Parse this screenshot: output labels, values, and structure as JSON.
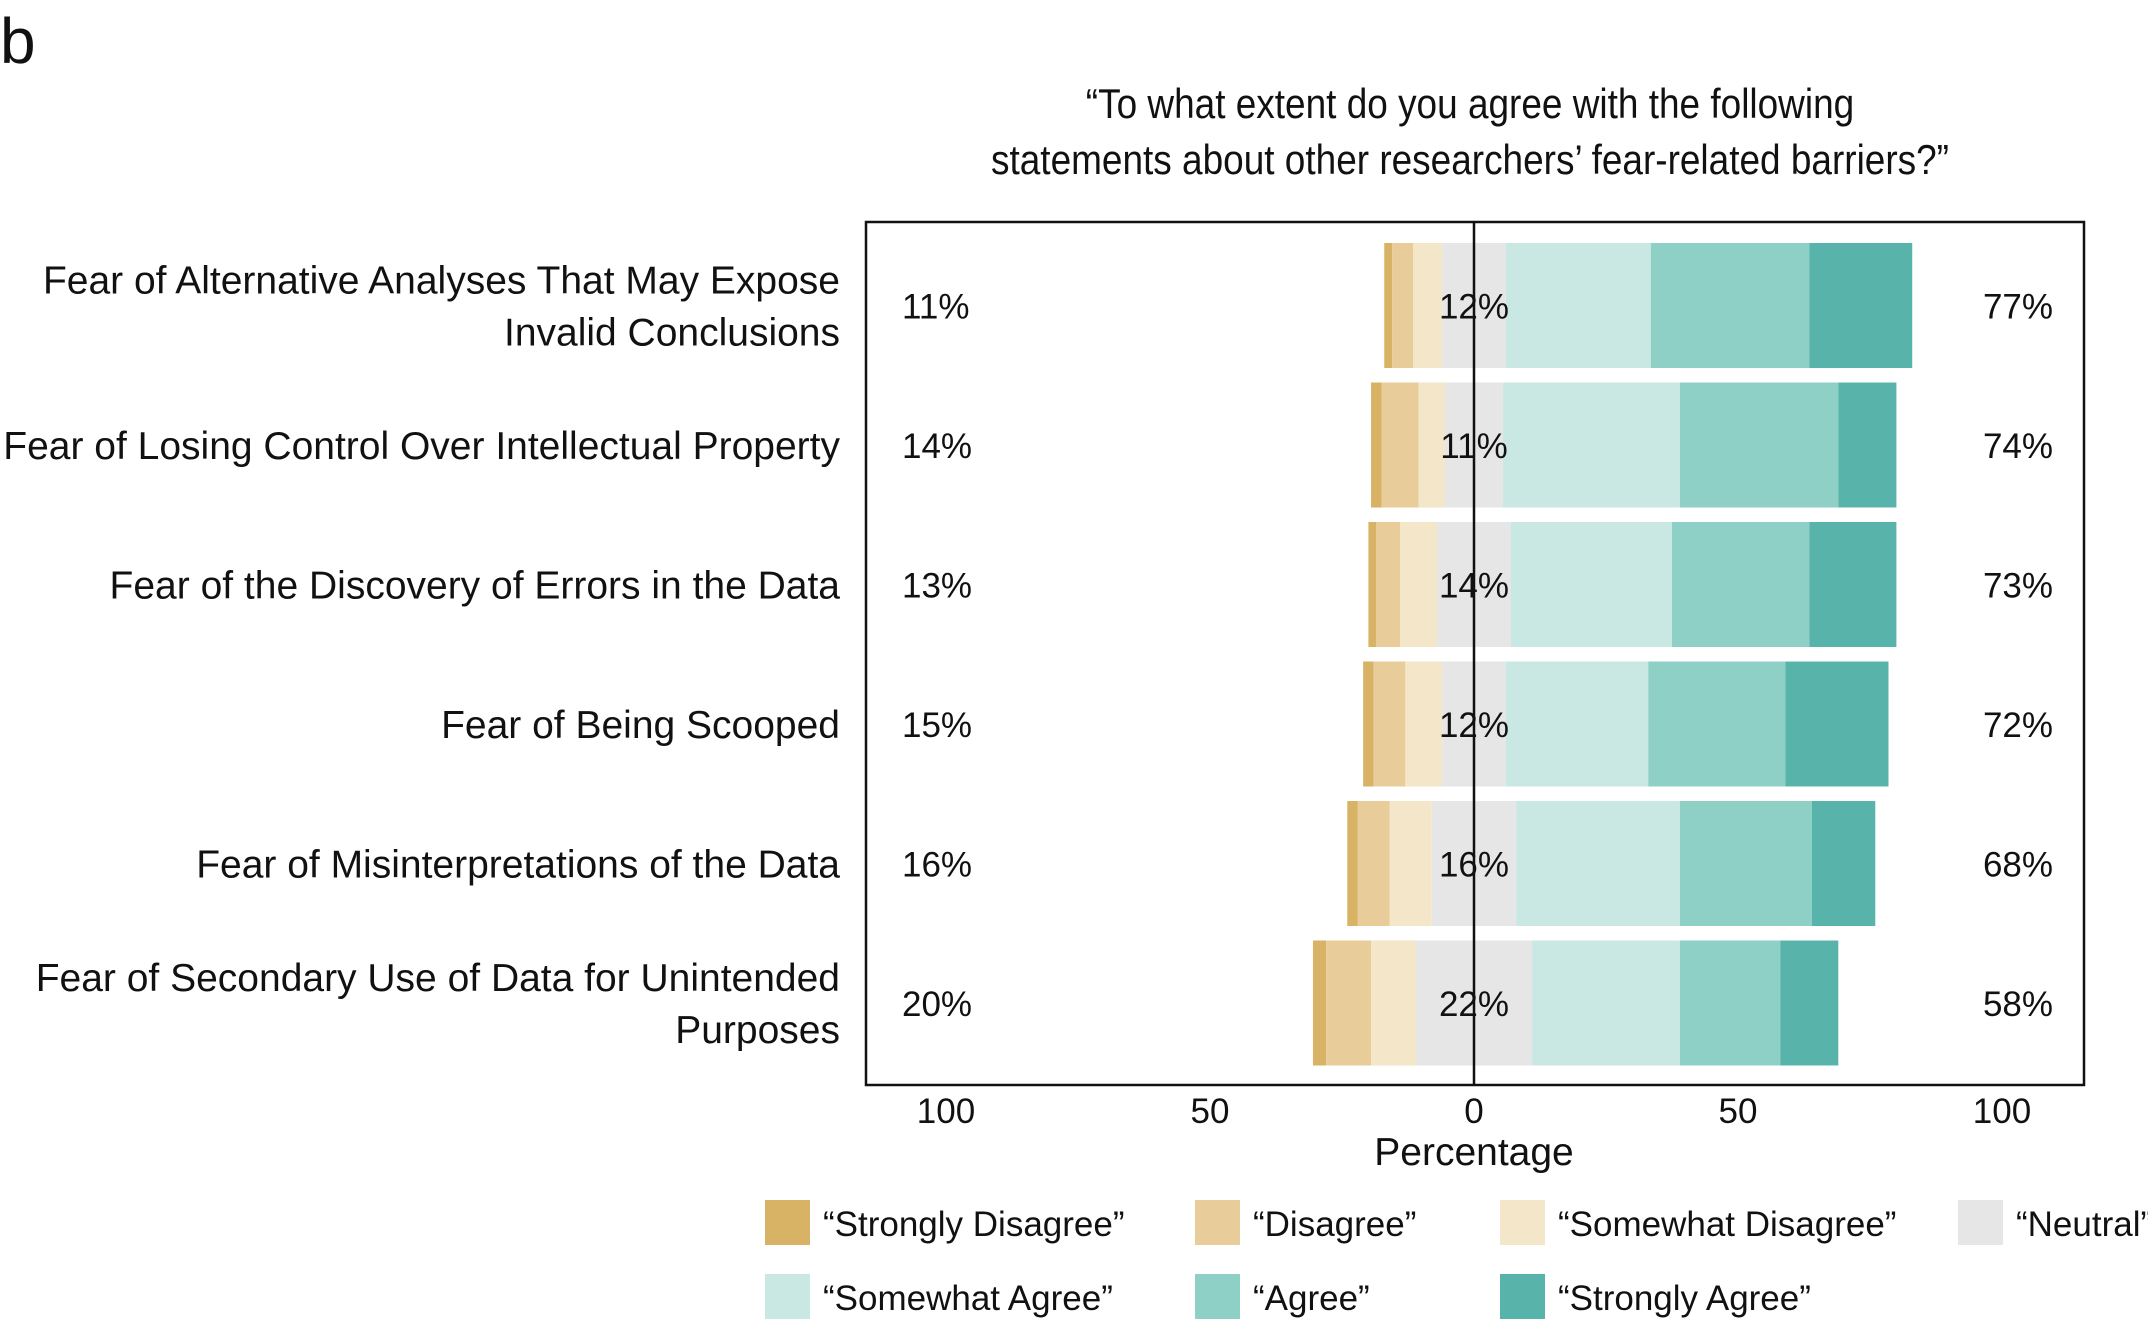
{
  "panel_label": "b",
  "chart_data": {
    "type": "bar",
    "orientation": "horizontal",
    "stacked": "diverging",
    "title_lines": [
      "“To what extent do you agree with the following",
      "statements about other researchers’ fear-related barriers?”"
    ],
    "xlabel": "Percentage",
    "xlim": [
      -100,
      100
    ],
    "xticks": [
      {
        "value": -100,
        "label": "100"
      },
      {
        "value": -50,
        "label": "50"
      },
      {
        "value": 0,
        "label": "0"
      },
      {
        "value": 50,
        "label": "50"
      },
      {
        "value": 100,
        "label": "100"
      }
    ],
    "categories": [
      {
        "lines": [
          "Fear of Alternative Analyses That May Expose",
          "Invalid Conclusions"
        ],
        "left_pct": "11%",
        "neutral_pct": "12%",
        "right_pct": "77%"
      },
      {
        "lines": [
          "Fear of Losing Control Over Intellectual Property"
        ],
        "left_pct": "14%",
        "neutral_pct": "11%",
        "right_pct": "74%"
      },
      {
        "lines": [
          "Fear of the Discovery of Errors in the Data"
        ],
        "left_pct": "13%",
        "neutral_pct": "14%",
        "right_pct": "73%"
      },
      {
        "lines": [
          "Fear of Being Scooped"
        ],
        "left_pct": "15%",
        "neutral_pct": "12%",
        "right_pct": "72%"
      },
      {
        "lines": [
          "Fear of Misinterpretations of the Data"
        ],
        "left_pct": "16%",
        "neutral_pct": "16%",
        "right_pct": "68%"
      },
      {
        "lines": [
          "Fear of Secondary Use of Data for Unintended",
          "Purposes"
        ],
        "left_pct": "20%",
        "neutral_pct": "22%",
        "right_pct": "58%"
      }
    ],
    "series": [
      {
        "name": "“Strongly Disagree”",
        "color": "#d8b366",
        "values": [
          1.5,
          2,
          1.5,
          2,
          2,
          2.5
        ]
      },
      {
        "name": "“Disagree”",
        "color": "#e8cd9b",
        "values": [
          4,
          7,
          4.5,
          6,
          6,
          8.5
        ]
      },
      {
        "name": "“Somewhat Disagree”",
        "color": "#f3e6c9",
        "values": [
          5.5,
          5,
          7,
          7,
          8,
          8.5
        ]
      },
      {
        "name": "“Neutral”",
        "color": "#e6e6e6",
        "values": [
          12,
          11,
          14,
          12,
          16,
          22
        ]
      },
      {
        "name": "“Somewhat Agree”",
        "color": "#c9e7e3",
        "values": [
          27.5,
          33.5,
          30.5,
          27,
          31,
          28
        ]
      },
      {
        "name": "“Agree”",
        "color": "#8fd0c6",
        "values": [
          30,
          30,
          26,
          26,
          25,
          19
        ]
      },
      {
        "name": "“Strongly Agree”",
        "color": "#58b4aa",
        "values": [
          19.5,
          11,
          16.5,
          19.5,
          12,
          11
        ]
      }
    ],
    "neutral_index": 3,
    "legend_placement": "bottom"
  }
}
